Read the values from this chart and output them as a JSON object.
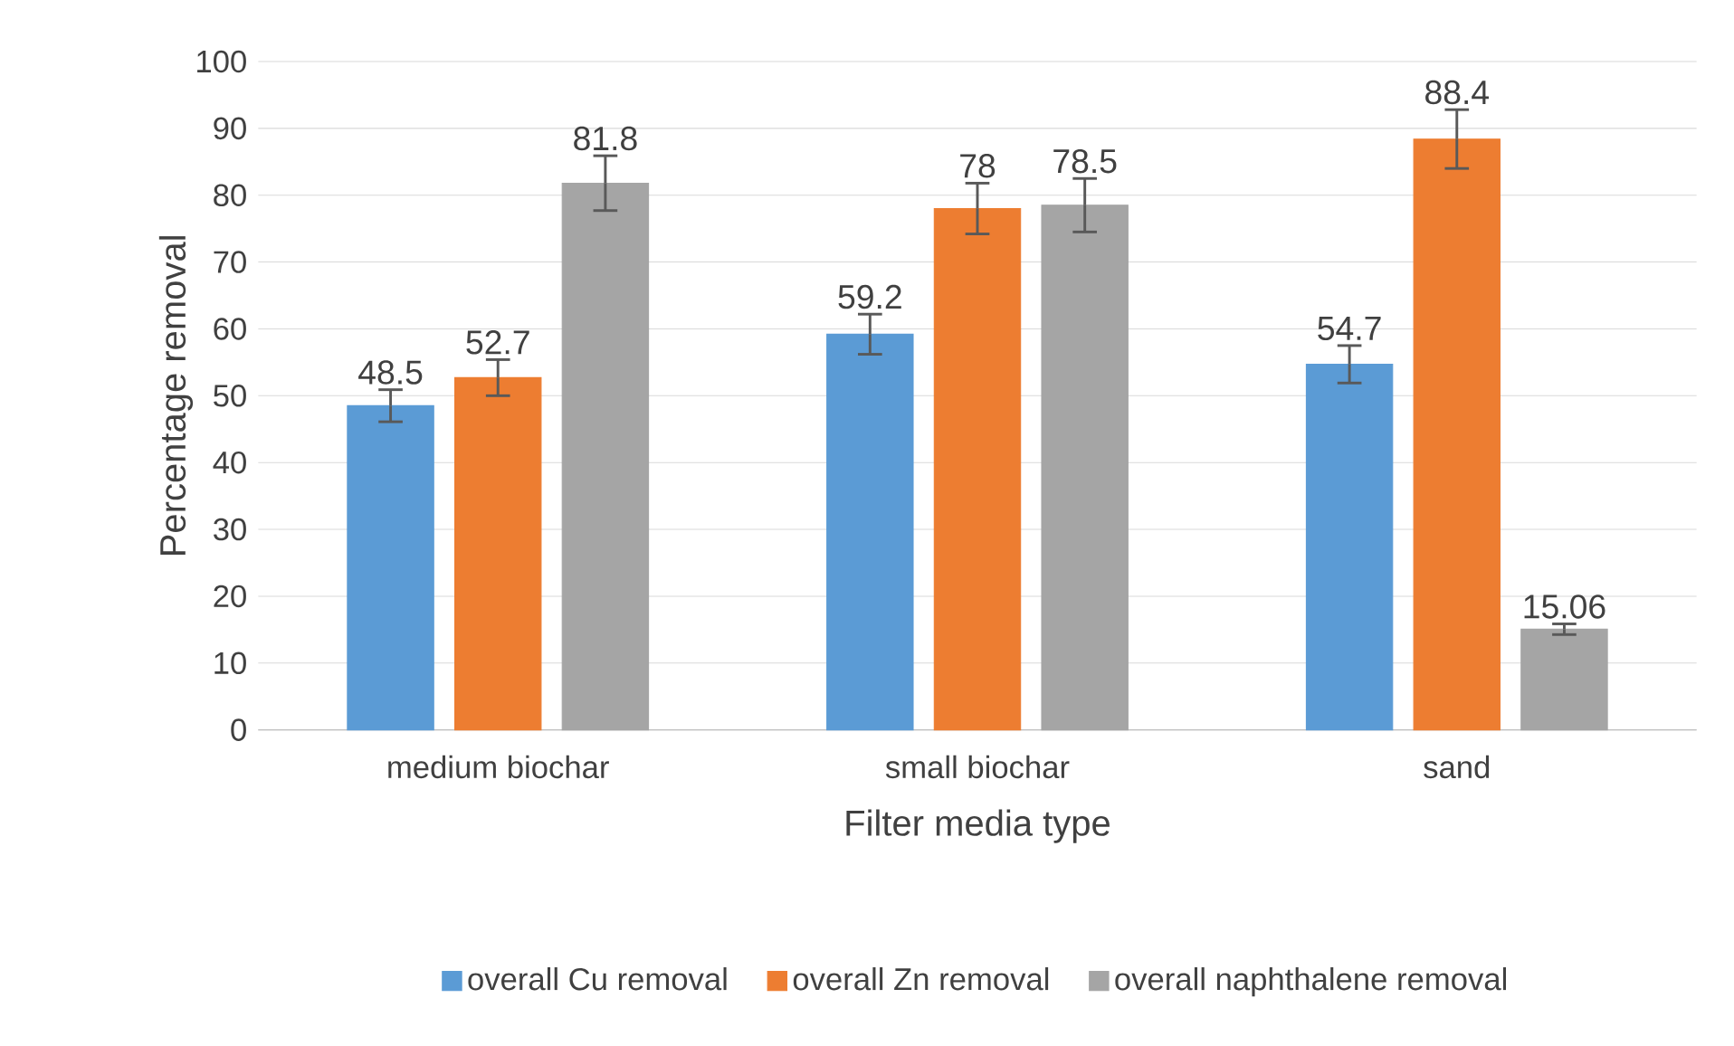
{
  "chart_data": {
    "type": "bar",
    "xlabel": "Filter media type",
    "ylabel": "Percentage removal",
    "categories": [
      "medium biochar",
      "small biochar",
      "sand"
    ],
    "series": [
      {
        "name": "overall Cu removal",
        "color": "#5b9bd5",
        "values": [
          48.5,
          59.2,
          54.7
        ],
        "errors": [
          2.4,
          3.0,
          2.8
        ]
      },
      {
        "name": "overall Zn removal",
        "color": "#ed7d31",
        "values": [
          52.7,
          78,
          88.4
        ],
        "errors": [
          2.7,
          3.8,
          4.4
        ]
      },
      {
        "name": "overall naphthalene removal",
        "color": "#a5a5a5",
        "values": [
          81.8,
          78.5,
          15.06
        ],
        "errors": [
          4.1,
          4.0,
          0.8
        ]
      }
    ],
    "ylim": [
      0,
      100
    ],
    "yticks": [
      0,
      10,
      20,
      30,
      40,
      50,
      60,
      70,
      80,
      90,
      100
    ],
    "grid": "y",
    "legend": "bottom",
    "data_labels": true
  }
}
